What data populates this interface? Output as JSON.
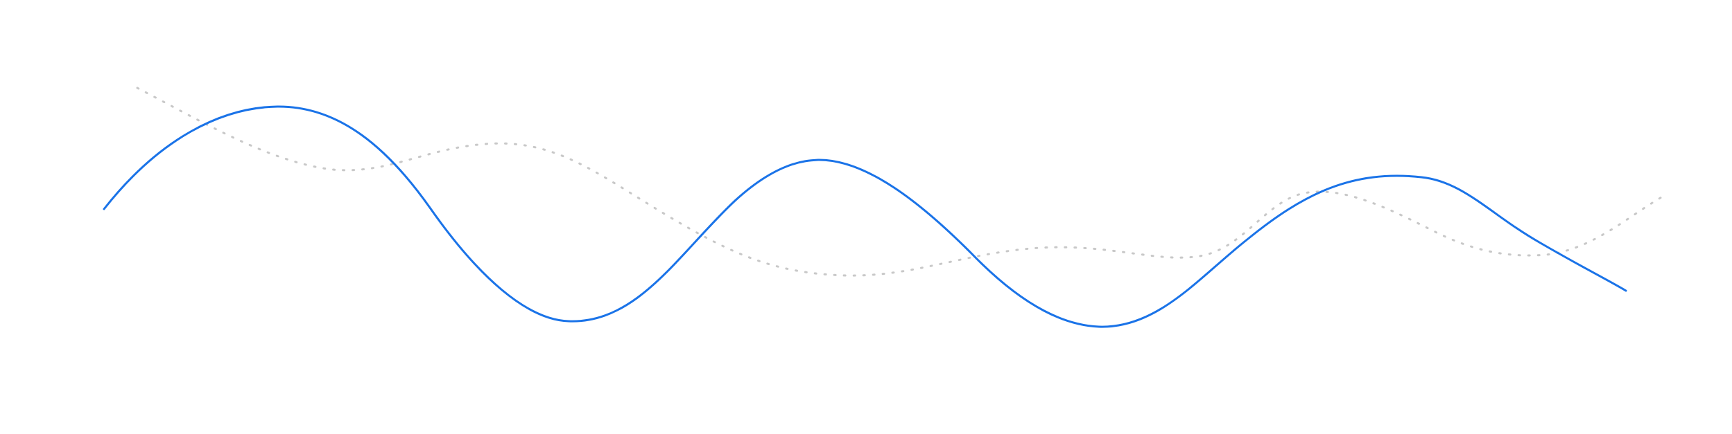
{
  "colors": {
    "background": "#ffffff",
    "primary_line": "#1a73e8",
    "secondary_line": "#c8c8c8"
  },
  "decoration": {
    "primary_line_style": "solid",
    "secondary_line_style": "dotted"
  }
}
